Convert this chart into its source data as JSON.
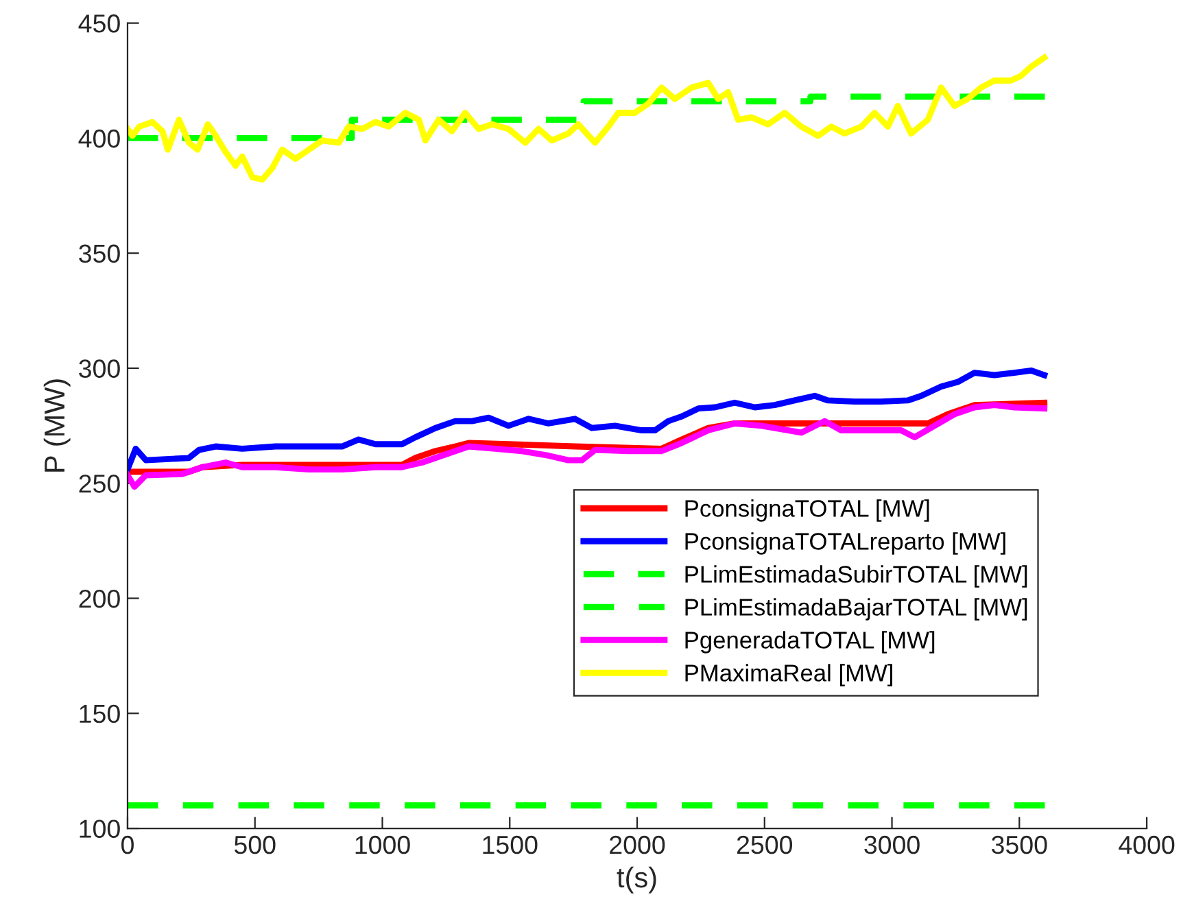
{
  "chart_data": {
    "type": "line",
    "xlabel": "t(s)",
    "ylabel": "P (MW)",
    "xlim": [
      0,
      4000
    ],
    "ylim": [
      100,
      450
    ],
    "xticks": [
      0,
      500,
      1000,
      1500,
      2000,
      2500,
      3000,
      3500,
      4000
    ],
    "yticks": [
      100,
      150,
      200,
      250,
      300,
      350,
      400,
      450
    ],
    "grid": false,
    "legend": "lower right",
    "marker": "none",
    "series": [
      {
        "name": "PconsignaTOTAL [MW]",
        "color": "#ff0000",
        "line_style": "solid",
        "x": [
          0,
          241,
          294,
          450,
          712,
          1077,
          1130,
          1208,
          1286,
          1339,
          1495,
          1756,
          2096,
          2174,
          2279,
          2383,
          2540,
          2801,
          3141,
          3219,
          3324,
          3598
        ],
        "values": [
          255,
          255,
          257,
          258,
          258,
          258,
          261,
          264,
          266,
          267.5,
          267,
          266,
          265,
          269,
          274,
          276,
          276,
          276,
          276,
          280,
          284,
          285
        ]
      },
      {
        "name": "PconsignaTOTALreparto [MW]",
        "color": "#0000ff",
        "line_style": "solid",
        "x": [
          0,
          32,
          72,
          241,
          281,
          346,
          450,
          581,
          712,
          842,
          907,
          973,
          1077,
          1130,
          1208,
          1286,
          1352,
          1417,
          1495,
          1574,
          1652,
          1756,
          1822,
          1913,
          2018,
          2070,
          2122,
          2174,
          2240,
          2305,
          2383,
          2462,
          2540,
          2618,
          2697,
          2749,
          2853,
          2958,
          3062,
          3115,
          3193,
          3258,
          3324,
          3402,
          3480,
          3546,
          3598
        ],
        "values": [
          256,
          265,
          260,
          261,
          264.5,
          266,
          265,
          266,
          266,
          266,
          269,
          267,
          267,
          270,
          274,
          277,
          277,
          278.5,
          275,
          278,
          276,
          278,
          274,
          275,
          273,
          273,
          277,
          279,
          282.5,
          283,
          285,
          283,
          284,
          286,
          288,
          286,
          285.5,
          285.5,
          286,
          288,
          292,
          294,
          298,
          297,
          298,
          299,
          297
        ]
      },
      {
        "name": "PLimEstimadaSubirTOTAL [MW]",
        "color": "#00ff00",
        "type": "step",
        "line_style": "dashed",
        "x": [
          0,
          880,
          1790,
          2680,
          3600
        ],
        "values": [
          400,
          408,
          416,
          418,
          418
        ]
      },
      {
        "name": "PLimEstimadaBajarTOTAL [MW]",
        "color": "#00ff00",
        "line_style": "dashed",
        "x": [
          0,
          3600
        ],
        "values": [
          110,
          110
        ]
      },
      {
        "name": "PgeneradaTOTAL [MW]",
        "color": "#ff00ff",
        "line_style": "solid",
        "x": [
          0,
          27,
          72,
          215,
          294,
          385,
          450,
          581,
          712,
          842,
          973,
          1077,
          1156,
          1234,
          1339,
          1443,
          1547,
          1652,
          1730,
          1783,
          1835,
          1965,
          2096,
          2174,
          2279,
          2383,
          2488,
          2644,
          2736,
          2801,
          2932,
          3036,
          3089,
          3167,
          3245,
          3324,
          3402,
          3480,
          3598
        ],
        "values": [
          253.5,
          248.5,
          253.5,
          254,
          257,
          259,
          257,
          257,
          256,
          256,
          257,
          257,
          259,
          262,
          266,
          265,
          264,
          262,
          260,
          260,
          264.5,
          264,
          264,
          267.5,
          273,
          276,
          275,
          272,
          277,
          273,
          273,
          273,
          270,
          275,
          280,
          283,
          284,
          283,
          282.5
        ]
      },
      {
        "name": "PMaximaReal [MW]",
        "color": "#ffff00",
        "line_style": "solid",
        "x": [
          0,
          19,
          46,
          98,
          137,
          158,
          202,
          241,
          275,
          315,
          346,
          385,
          424,
          450,
          490,
          529,
          568,
          607,
          659,
          712,
          764,
          829,
          868,
          921,
          973,
          1025,
          1090,
          1143,
          1169,
          1221,
          1273,
          1325,
          1378,
          1430,
          1495,
          1561,
          1613,
          1665,
          1730,
          1769,
          1835,
          1887,
          1926,
          1991,
          2044,
          2096,
          2148,
          2214,
          2279,
          2318,
          2357,
          2396,
          2449,
          2514,
          2579,
          2644,
          2710,
          2762,
          2814,
          2880,
          2932,
          2984,
          3023,
          3075,
          3141,
          3193,
          3245,
          3297,
          3350,
          3402,
          3467,
          3506,
          3546,
          3598
        ],
        "values": [
          404,
          401,
          405,
          407,
          403,
          395,
          408,
          398,
          395,
          406,
          401,
          394,
          388,
          392,
          383,
          382,
          387,
          395,
          391,
          395,
          399,
          398,
          405,
          404,
          407,
          405,
          411,
          408,
          399,
          408,
          403,
          411,
          404,
          406,
          404,
          398,
          404,
          399,
          402,
          406,
          398,
          405,
          411,
          411,
          415,
          422,
          417,
          422,
          424,
          417,
          420,
          408,
          409,
          406,
          411,
          405,
          401,
          405,
          402,
          405,
          411,
          405,
          414,
          402,
          408,
          422,
          414,
          417,
          422,
          425,
          425,
          427,
          431,
          435
        ]
      }
    ]
  }
}
